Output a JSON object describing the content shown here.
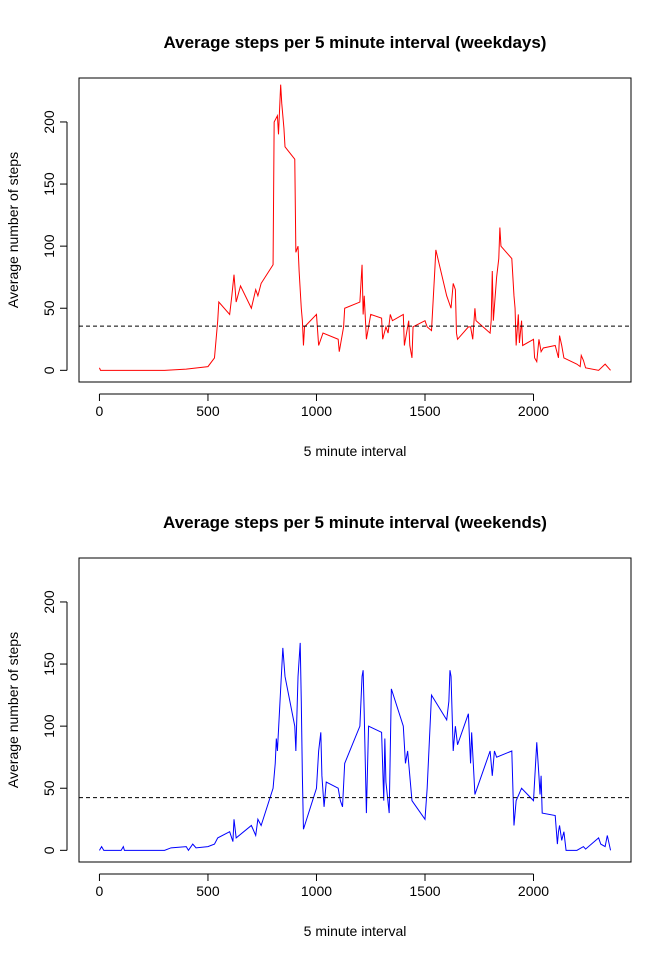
{
  "chart_data": [
    {
      "type": "line",
      "title": "Average steps per 5 minute interval (weekdays)",
      "xlabel": "5 minute interval",
      "ylabel": "Average number of steps",
      "color": "#ff0000",
      "x": [
        0,
        5,
        100,
        200,
        300,
        400,
        450,
        500,
        530,
        545,
        550,
        600,
        610,
        620,
        630,
        650,
        700,
        720,
        730,
        745,
        800,
        805,
        820,
        825,
        835,
        840,
        850,
        855,
        900,
        905,
        915,
        920,
        930,
        935,
        940,
        945,
        1000,
        1010,
        1030,
        1100,
        1105,
        1125,
        1130,
        1200,
        1205,
        1210,
        1215,
        1220,
        1230,
        1240,
        1250,
        1300,
        1305,
        1320,
        1330,
        1340,
        1350,
        1400,
        1405,
        1415,
        1425,
        1430,
        1440,
        1445,
        1500,
        1510,
        1530,
        1545,
        1550,
        1600,
        1620,
        1630,
        1640,
        1645,
        1650,
        1700,
        1710,
        1720,
        1730,
        1735,
        1800,
        1805,
        1810,
        1815,
        1830,
        1840,
        1845,
        1850,
        1900,
        1910,
        1915,
        1920,
        1930,
        1935,
        1945,
        1950,
        2000,
        2005,
        2015,
        2025,
        2035,
        2045,
        2100,
        2115,
        2120,
        2130,
        2140,
        2200,
        2215,
        2220,
        2230,
        2240,
        2300,
        2330,
        2355
      ],
      "values": [
        2,
        0,
        0,
        0,
        0,
        1,
        2,
        3,
        10,
        40,
        55,
        45,
        60,
        77,
        55,
        68,
        50,
        65,
        60,
        70,
        85,
        200,
        205,
        190,
        230,
        215,
        195,
        180,
        170,
        95,
        100,
        80,
        50,
        40,
        20,
        35,
        45,
        20,
        30,
        25,
        15,
        35,
        50,
        55,
        70,
        85,
        45,
        60,
        25,
        35,
        45,
        42,
        25,
        35,
        30,
        45,
        40,
        45,
        20,
        30,
        40,
        20,
        10,
        35,
        40,
        35,
        32,
        80,
        97,
        60,
        50,
        70,
        65,
        30,
        25,
        35,
        35,
        25,
        50,
        40,
        30,
        40,
        80,
        40,
        75,
        90,
        115,
        100,
        90,
        60,
        50,
        20,
        45,
        22,
        40,
        20,
        25,
        10,
        7,
        25,
        15,
        18,
        20,
        10,
        28,
        20,
        10,
        5,
        3,
        12,
        8,
        2,
        0,
        5,
        0
      ],
      "hline": 35.6,
      "xlim": [
        -94.2,
        2449.2
      ],
      "ylim": [
        -9.4,
        235.4
      ],
      "xticks": [
        0,
        500,
        1000,
        1500,
        2000
      ],
      "yticks": [
        0,
        50,
        100,
        150,
        200
      ]
    },
    {
      "type": "line",
      "title": "Average steps per 5 minute interval (weekends)",
      "xlabel": "5 minute interval",
      "ylabel": "Average number of steps",
      "color": "#0000ff",
      "x": [
        0,
        10,
        20,
        100,
        110,
        115,
        200,
        300,
        330,
        400,
        410,
        430,
        445,
        500,
        530,
        545,
        600,
        615,
        620,
        630,
        700,
        720,
        730,
        745,
        800,
        810,
        815,
        820,
        835,
        845,
        855,
        900,
        905,
        915,
        925,
        930,
        935,
        940,
        1000,
        1010,
        1020,
        1025,
        1035,
        1045,
        1100,
        1110,
        1120,
        1130,
        1200,
        1210,
        1215,
        1220,
        1230,
        1240,
        1300,
        1310,
        1315,
        1320,
        1335,
        1345,
        1400,
        1410,
        1420,
        1430,
        1440,
        1500,
        1510,
        1530,
        1600,
        1610,
        1615,
        1620,
        1630,
        1640,
        1650,
        1700,
        1705,
        1710,
        1715,
        1730,
        1800,
        1810,
        1820,
        1830,
        1900,
        1910,
        1920,
        1945,
        2000,
        2015,
        2025,
        2030,
        2035,
        2040,
        2100,
        2110,
        2115,
        2120,
        2130,
        2140,
        2150,
        2200,
        2230,
        2240,
        2300,
        2310,
        2330,
        2340,
        2355
      ],
      "values": [
        0,
        3,
        0,
        0,
        3,
        0,
        0,
        0,
        2,
        3,
        0,
        5,
        2,
        3,
        5,
        10,
        15,
        7,
        25,
        10,
        20,
        12,
        25,
        20,
        50,
        70,
        90,
        80,
        130,
        163,
        140,
        100,
        80,
        140,
        167,
        120,
        60,
        17,
        50,
        80,
        95,
        60,
        35,
        55,
        50,
        40,
        35,
        70,
        100,
        140,
        145,
        110,
        30,
        100,
        95,
        40,
        90,
        55,
        30,
        130,
        100,
        70,
        80,
        60,
        40,
        25,
        50,
        125,
        105,
        120,
        145,
        140,
        80,
        100,
        85,
        110,
        90,
        70,
        95,
        45,
        80,
        60,
        80,
        75,
        80,
        20,
        40,
        50,
        40,
        87,
        60,
        45,
        60,
        30,
        28,
        5,
        15,
        20,
        8,
        15,
        0,
        0,
        3,
        1,
        10,
        5,
        3,
        12,
        0
      ],
      "hline": 42.4,
      "xlim": [
        -94.2,
        2449.2
      ],
      "ylim": [
        -9.4,
        235.4
      ],
      "xticks": [
        0,
        500,
        1000,
        1500,
        2000
      ],
      "yticks": [
        0,
        50,
        100,
        150,
        200
      ]
    }
  ]
}
